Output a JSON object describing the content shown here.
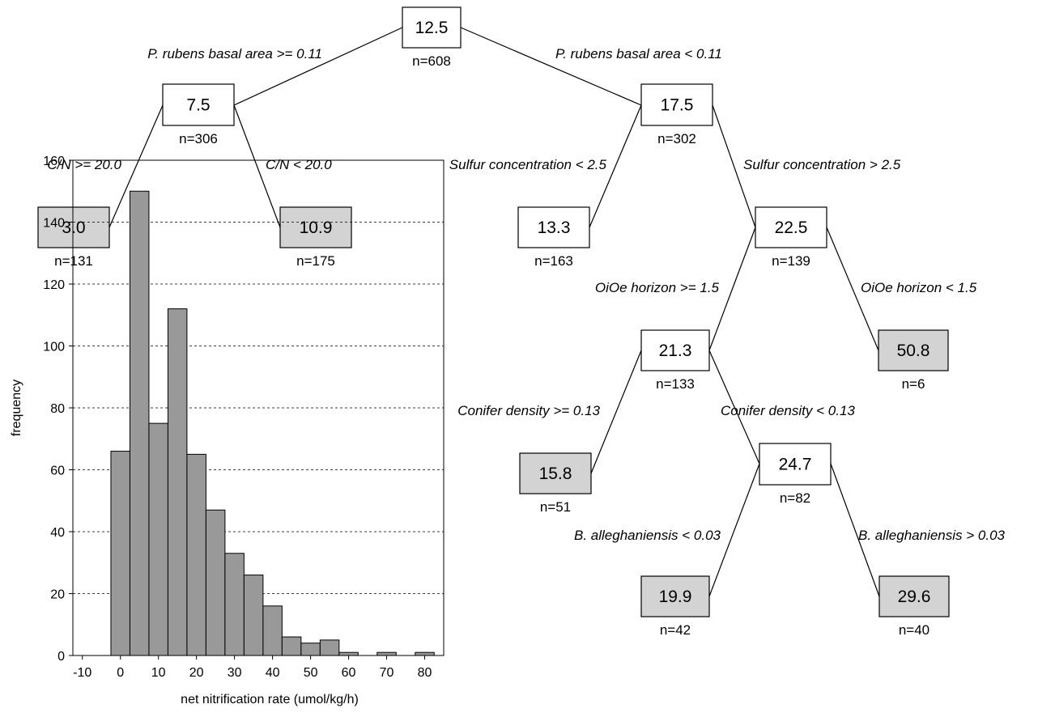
{
  "tree": {
    "nodes": [
      {
        "id": "root",
        "value": "12.5",
        "n": "n=608",
        "terminal": false
      },
      {
        "id": "l",
        "value": "7.5",
        "n": "n=306",
        "terminal": false
      },
      {
        "id": "r",
        "value": "17.5",
        "n": "n=302",
        "terminal": false
      },
      {
        "id": "ll",
        "value": "3.0",
        "n": "n=131",
        "terminal": true
      },
      {
        "id": "lr",
        "value": "10.9",
        "n": "n=175",
        "terminal": true
      },
      {
        "id": "rl",
        "value": "13.3",
        "n": "n=163",
        "terminal": false
      },
      {
        "id": "rr",
        "value": "22.5",
        "n": "n=139",
        "terminal": false
      },
      {
        "id": "rrl",
        "value": "21.3",
        "n": "n=133",
        "terminal": false
      },
      {
        "id": "rrr",
        "value": "50.8",
        "n": "n=6",
        "terminal": true
      },
      {
        "id": "rrll",
        "value": "15.8",
        "n": "n=51",
        "terminal": true
      },
      {
        "id": "rrlr",
        "value": "24.7",
        "n": "n=82",
        "terminal": false
      },
      {
        "id": "rrlrl",
        "value": "19.9",
        "n": "n=42",
        "terminal": true
      },
      {
        "id": "rrlrr",
        "value": "29.6",
        "n": "n=40",
        "terminal": true
      }
    ],
    "splits": [
      {
        "from": "root",
        "to": "l",
        "label": "P. rubens basal area >= 0.11"
      },
      {
        "from": "root",
        "to": "r",
        "label": "P. rubens basal area < 0.11"
      },
      {
        "from": "l",
        "to": "ll",
        "label": "C/N >= 20.0"
      },
      {
        "from": "l",
        "to": "lr",
        "label": "C/N < 20.0"
      },
      {
        "from": "r",
        "to": "rl",
        "label": "Sulfur concentration < 2.5"
      },
      {
        "from": "r",
        "to": "rr",
        "label": "Sulfur concentration > 2.5"
      },
      {
        "from": "rr",
        "to": "rrl",
        "label": "OiOe horizon >= 1.5"
      },
      {
        "from": "rr",
        "to": "rrr",
        "label": "OiOe horizon < 1.5"
      },
      {
        "from": "rrl",
        "to": "rrll",
        "label": "Conifer density >= 0.13"
      },
      {
        "from": "rrl",
        "to": "rrlr",
        "label": "Conifer density < 0.13"
      },
      {
        "from": "rrlr",
        "to": "rrlrl",
        "label": "B. alleghaniensis < 0.03"
      },
      {
        "from": "rrlr",
        "to": "rrlrr",
        "label": "B. alleghaniensis > 0.03"
      }
    ],
    "colors": {
      "terminal_fill": "#d3d3d3",
      "internal_fill": "#ffffff",
      "stroke": "#000000"
    }
  },
  "chart_data": {
    "type": "bar",
    "xlabel": "net nitrification rate (umol/kg/h)",
    "ylabel": "frequency",
    "x_ticks": [
      -10,
      0,
      10,
      20,
      30,
      40,
      50,
      60,
      70,
      80
    ],
    "y_ticks": [
      0,
      20,
      40,
      60,
      80,
      100,
      120,
      140,
      160
    ],
    "xlim": [
      -12.5,
      85
    ],
    "ylim": [
      0,
      160
    ],
    "bin_width": 5,
    "bin_centers": [
      0,
      5,
      10,
      15,
      20,
      25,
      30,
      35,
      40,
      45,
      50,
      55,
      60,
      65,
      70,
      75,
      80
    ],
    "values": [
      66,
      150,
      75,
      112,
      65,
      47,
      33,
      26,
      16,
      6,
      4,
      5,
      1,
      0,
      1,
      0,
      1
    ],
    "grid": "horizontal dashed",
    "bar_color": "#999999"
  }
}
